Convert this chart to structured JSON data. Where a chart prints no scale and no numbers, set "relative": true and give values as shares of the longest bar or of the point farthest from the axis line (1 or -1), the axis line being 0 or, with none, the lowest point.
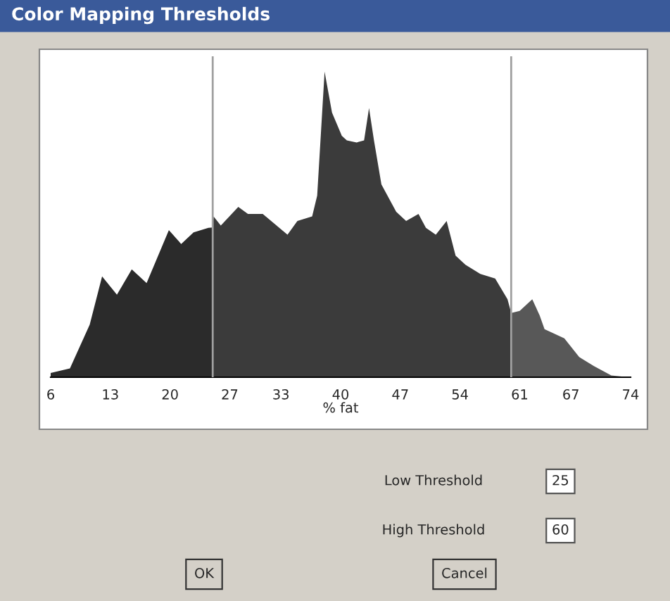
{
  "chart_data": {
    "type": "area",
    "title": "Color Mapping Thresholds",
    "xlabel": "% fat",
    "relative": true,
    "xlim": [
      6,
      74
    ],
    "xticks": [
      6,
      13,
      20,
      27,
      33,
      40,
      47,
      54,
      61,
      67,
      74
    ],
    "grid": false,
    "legend": false,
    "tick_labels": "x",
    "series": [
      {
        "color": "#2b2b2b",
        "x": [
          6.0,
          8.26,
          10.58,
          12.03,
          13.77,
          15.51,
          17.25,
          19.86,
          21.3,
          22.75,
          24.49,
          25.0
        ],
        "values": [
          0.014,
          0.029,
          0.172,
          0.33,
          0.27,
          0.353,
          0.308,
          0.481,
          0.436,
          0.474,
          0.489,
          0.49
        ]
      },
      {
        "color": "#3b3b3b",
        "x": [
          25.0,
          25.1,
          25.95,
          28.0,
          29.13,
          30.87,
          33.77,
          34.93,
          36.66,
          37.25,
          38.12,
          38.99,
          40.14,
          40.73,
          41.88,
          42.75,
          43.33,
          43.91,
          44.78,
          46.52,
          47.68,
          49.13,
          50.0,
          51.16,
          52.43,
          53.48,
          54.64,
          56.38,
          58.12,
          59.57,
          60.0
        ],
        "values": [
          0.49,
          0.526,
          0.496,
          0.557,
          0.534,
          0.534,
          0.466,
          0.511,
          0.526,
          0.594,
          1.0,
          0.866,
          0.79,
          0.775,
          0.768,
          0.775,
          0.881,
          0.775,
          0.631,
          0.541,
          0.511,
          0.534,
          0.489,
          0.466,
          0.511,
          0.398,
          0.368,
          0.338,
          0.323,
          0.255,
          0.21
        ]
      },
      {
        "color": "#585858",
        "x": [
          60.0,
          61.0,
          62.47,
          63.34,
          63.91,
          66.23,
          67.97,
          69.71,
          71.74,
          73.77
        ],
        "values": [
          0.21,
          0.217,
          0.255,
          0.202,
          0.157,
          0.127,
          0.066,
          0.036,
          0.006,
          0.0
        ]
      }
    ],
    "ref_lines": [
      {
        "axis": "x",
        "value": 25,
        "color": "#a0a0a0"
      },
      {
        "axis": "x",
        "value": 60,
        "color": "#a0a0a0"
      }
    ],
    "annotations": [
      "Low Threshold",
      "25",
      "High Threshold",
      "60",
      "OK",
      "Cancel"
    ]
  }
}
